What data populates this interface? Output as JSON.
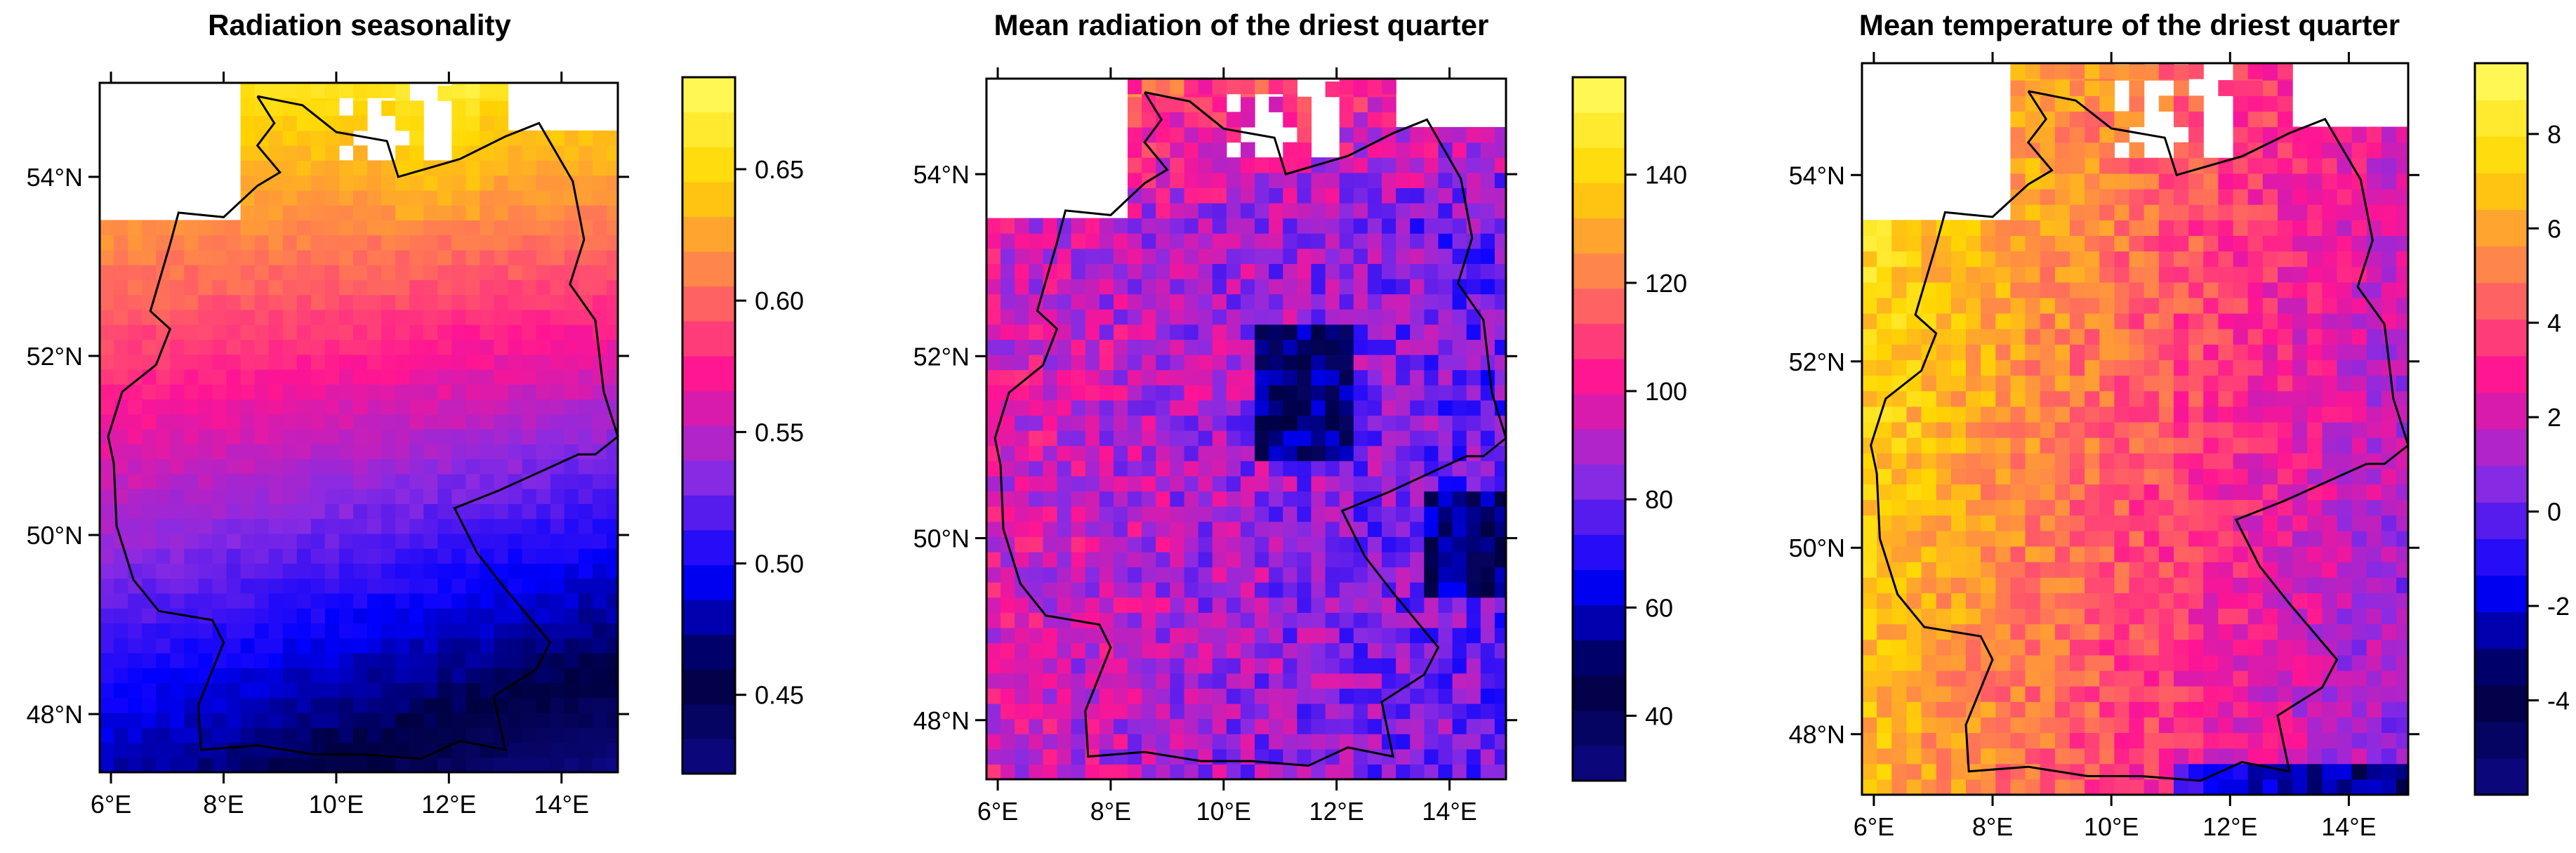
{
  "figure": {
    "panels": [
      {
        "id": "radiation-seasonality",
        "title": "Radiation seasonality",
        "x_ticks": [
          "6°E",
          "8°E",
          "10°E",
          "12°E",
          "14°E"
        ],
        "y_ticks": [
          "48°N",
          "50°N",
          "52°N",
          "54°N"
        ],
        "colorbar_ticks": [
          "0.45",
          "0.50",
          "0.55",
          "0.60",
          "0.65"
        ],
        "colorbar_range": [
          0.42,
          0.685
        ],
        "field": {
          "type": "lat-gradient",
          "south": 0.48,
          "north": 0.655,
          "south_east_low": 0.43
        }
      },
      {
        "id": "mean-radiation-driest-quarter",
        "title": "Mean radiation of the driest quarter",
        "x_ticks": [
          "6°E",
          "8°E",
          "10°E",
          "12°E",
          "14°E"
        ],
        "y_ticks": [
          "48°N",
          "50°N",
          "52°N",
          "54°N"
        ],
        "colorbar_ticks": [
          "40",
          "60",
          "80",
          "100",
          "120",
          "140"
        ],
        "colorbar_range": [
          28,
          158
        ],
        "field": {
          "type": "patchy",
          "base": 78,
          "north_high": 100,
          "west_high": 112
        }
      },
      {
        "id": "mean-temperature-driest-quarter",
        "title": "Mean temperature of the driest quarter",
        "x_ticks": [
          "6°E",
          "8°E",
          "10°E",
          "12°E",
          "14°E"
        ],
        "y_ticks": [
          "48°N",
          "50°N",
          "52°N",
          "54°N"
        ],
        "colorbar_ticks": [
          "-4",
          "-2",
          "0",
          "2",
          "4",
          "6",
          "8"
        ],
        "colorbar_range": [
          -6,
          9.5
        ],
        "field": {
          "type": "west-gradient",
          "west": 6.5,
          "east": 0.5,
          "north_bonus": 1.5
        }
      }
    ],
    "colormap_name": "plasma",
    "colors": {
      "palette": [
        "#0d0887",
        "#000040",
        "#0000ff",
        "#8a2be2",
        "#ff1493",
        "#ff7f50",
        "#ffd700",
        "#ffff66"
      ],
      "axis": "#000000",
      "border": "#000000",
      "background": "#ffffff"
    }
  }
}
